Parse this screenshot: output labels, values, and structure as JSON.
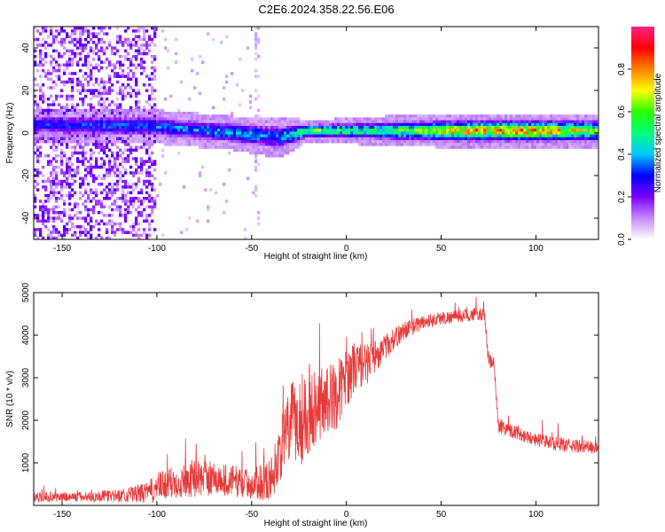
{
  "title": "C2E6.2024.358.22.56.E06",
  "colors": {
    "snr_line": "#e83a3a",
    "band_low": "#b06cff",
    "band_mid": "#00c8ff",
    "band_high": "#ff2a2a"
  },
  "chart_data": [
    {
      "type": "heatmap",
      "xlabel": "Height of straight line (km)",
      "ylabel": "Frequency (Hz)",
      "xlim": [
        -165,
        133
      ],
      "ylim": [
        -50,
        50
      ],
      "xticks": [
        -150,
        -100,
        -50,
        0,
        50,
        100
      ],
      "yticks": [
        -40,
        -20,
        0,
        20,
        40
      ],
      "colorbar": {
        "label": "Normalized spectral amplitude",
        "range": [
          0,
          1
        ],
        "ticks": [
          0.0,
          0.2,
          0.4,
          0.6,
          0.8
        ],
        "colormap": [
          "#ffffff",
          "#c58bff",
          "#7a00ff",
          "#0000ff",
          "#00c8ff",
          "#00ff7f",
          "#2aff00",
          "#ffff00",
          "#ff8000",
          "#ff0000",
          "#ff2288"
        ]
      },
      "band": {
        "description_points": [
          {
            "x": -165,
            "center": 4,
            "width": 8,
            "amplitude": 0.3
          },
          {
            "x": -100,
            "center": 3,
            "width": 8,
            "amplitude": 0.35
          },
          {
            "x": -60,
            "center": 0,
            "width": 8,
            "amplitude": 0.4
          },
          {
            "x": -35,
            "center": -2,
            "width": 10,
            "amplitude": 0.35
          },
          {
            "x": -20,
            "center": 1,
            "width": 5,
            "amplitude": 0.6
          },
          {
            "x": 0,
            "center": 1,
            "width": 6,
            "amplitude": 0.55
          },
          {
            "x": 20,
            "center": 1,
            "width": 7,
            "amplitude": 0.5
          },
          {
            "x": 60,
            "center": 1,
            "width": 8,
            "amplitude": 0.75
          },
          {
            "x": 100,
            "center": 1,
            "width": 8,
            "amplitude": 0.8
          },
          {
            "x": 133,
            "center": 1,
            "width": 8,
            "amplitude": 0.6
          }
        ],
        "noise_region_x": [
          -165,
          -100
        ],
        "sparse_noise_x": [
          -100,
          -45
        ]
      }
    },
    {
      "type": "line",
      "xlabel": "Height of straight line (km)",
      "ylabel": "SNR (10 * v/v)",
      "xlim": [
        -165,
        133
      ],
      "ylim": [
        0,
        5000
      ],
      "xticks": [
        -150,
        -100,
        -50,
        0,
        50,
        100
      ],
      "yticks": [
        1000,
        2000,
        3000,
        4000,
        5000
      ],
      "series": [
        {
          "x": [
            -165,
            -140,
            -120,
            -105,
            -100,
            -90,
            -80,
            -70,
            -60,
            -50,
            -40,
            -30,
            -25,
            -20,
            -15,
            -10,
            -5,
            0,
            5,
            10,
            20,
            30,
            40,
            50,
            60,
            70,
            73,
            75,
            78,
            80,
            85,
            90,
            100,
            110,
            120,
            133
          ],
          "values": [
            200,
            200,
            230,
            300,
            420,
            550,
            650,
            620,
            580,
            500,
            600,
            1900,
            2000,
            2200,
            2400,
            2500,
            2600,
            3000,
            3300,
            3300,
            3700,
            4100,
            4300,
            4400,
            4450,
            4500,
            4450,
            3400,
            3300,
            1900,
            1800,
            1700,
            1550,
            1450,
            1400,
            1350
          ],
          "noise_amplitude": [
            120,
            120,
            150,
            250,
            350,
            400,
            450,
            400,
            380,
            350,
            500,
            900,
            1200,
            1000,
            900,
            800,
            800,
            700,
            600,
            500,
            300,
            220,
            180,
            160,
            150,
            150,
            150,
            180,
            180,
            200,
            180,
            160,
            160,
            160,
            160,
            160
          ]
        }
      ]
    }
  ]
}
